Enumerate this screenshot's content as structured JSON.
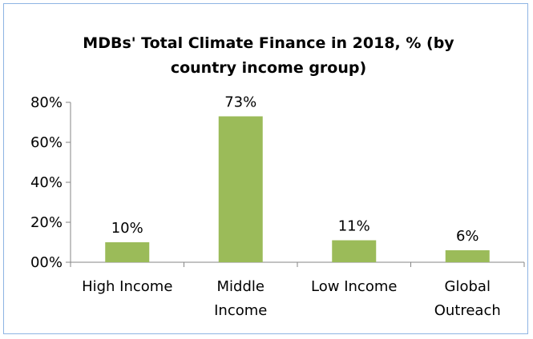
{
  "chart_data": {
    "type": "bar",
    "title": "MDBs' Total Climate Finance in 2018, % (by country income group)",
    "title_lines": [
      "MDBs' Total Climate Finance in 2018, % (by",
      "country income group)"
    ],
    "categories": [
      "High Income",
      "Middle Income",
      "Low Income",
      "Global Outreach"
    ],
    "category_lines": [
      [
        "High Income"
      ],
      [
        "Middle",
        "Income"
      ],
      [
        "Low Income"
      ],
      [
        "Global",
        "Outreach"
      ]
    ],
    "values": [
      10,
      73,
      11,
      6
    ],
    "data_labels": [
      "10%",
      "73%",
      "11%",
      "6%"
    ],
    "ylim": [
      0,
      80
    ],
    "yticks": [
      0,
      20,
      40,
      60,
      80
    ],
    "ytick_labels": [
      "00%",
      "20%",
      "40%",
      "60%",
      "80%"
    ],
    "xlabel": "",
    "ylabel": "",
    "grid": false,
    "legend": "none",
    "bar_color": "#9bbb59",
    "frame_color": "#8eb4e3",
    "axis_color": "#868686"
  }
}
